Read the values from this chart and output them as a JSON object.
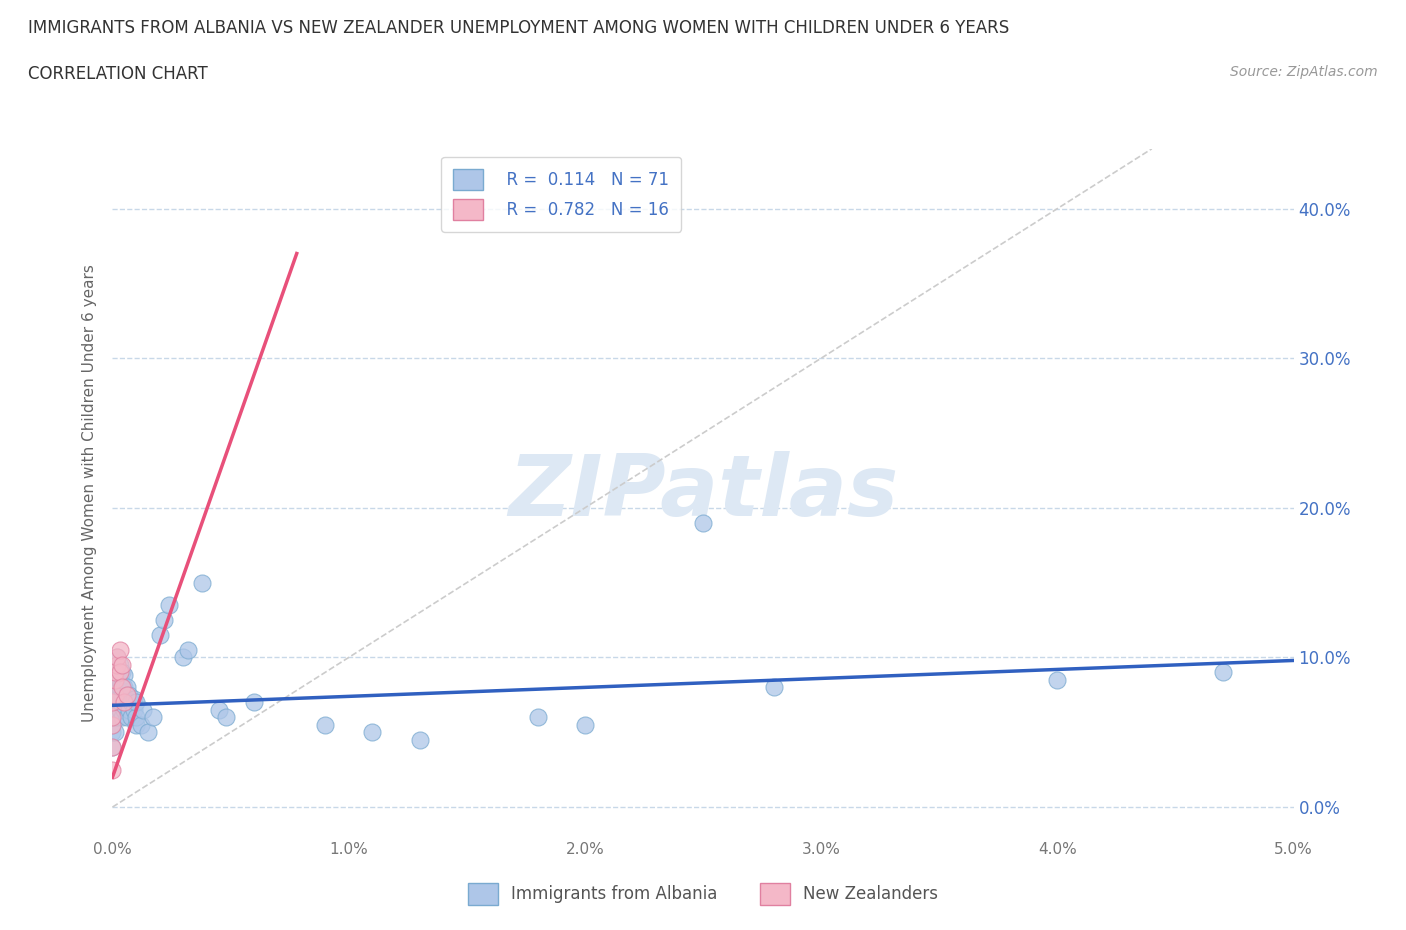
{
  "title_line1": "IMMIGRANTS FROM ALBANIA VS NEW ZEALANDER UNEMPLOYMENT AMONG WOMEN WITH CHILDREN UNDER 6 YEARS",
  "title_line2": "CORRELATION CHART",
  "source_text": "Source: ZipAtlas.com",
  "ylabel": "Unemployment Among Women with Children Under 6 years",
  "xlim": [
    0.0,
    0.05
  ],
  "ylim": [
    -0.02,
    0.44
  ],
  "yticks": [
    0.0,
    0.1,
    0.2,
    0.3,
    0.4
  ],
  "yticklabels": [
    "0.0%",
    "10.0%",
    "20.0%",
    "30.0%",
    "40.0%"
  ],
  "xticks": [
    0.0,
    0.01,
    0.02,
    0.03,
    0.04,
    0.05
  ],
  "xticklabels": [
    "0.0%",
    "1.0%",
    "2.0%",
    "3.0%",
    "4.0%",
    "5.0%"
  ],
  "albania_color": "#aec6e8",
  "albania_edge_color": "#7aaad0",
  "nz_color": "#f4b8c8",
  "nz_edge_color": "#e080a0",
  "albania_line_color": "#3060c0",
  "nz_line_color": "#e8507a",
  "diag_line_color": "#cccccc",
  "grid_color": "#c8d8e8",
  "background_color": "#ffffff",
  "watermark_color": "#dde8f4",
  "scatter_albania_x": [
    0.0,
    0.0,
    0.0,
    0.0,
    0.0,
    0.0,
    0.0,
    0.0001,
    0.0001,
    0.0001,
    0.0001,
    0.0001,
    0.0001,
    0.0002,
    0.0002,
    0.0002,
    0.0002,
    0.0002,
    0.0002,
    0.0002,
    0.0003,
    0.0003,
    0.0003,
    0.0003,
    0.0003,
    0.0003,
    0.0004,
    0.0004,
    0.0004,
    0.0004,
    0.0004,
    0.0005,
    0.0005,
    0.0005,
    0.0005,
    0.0006,
    0.0006,
    0.0006,
    0.0007,
    0.0007,
    0.0008,
    0.0008,
    0.0009,
    0.0009,
    0.001,
    0.001,
    0.001,
    0.0012,
    0.0013,
    0.0015,
    0.0017,
    0.002,
    0.0022,
    0.0024,
    0.003,
    0.0032,
    0.0038,
    0.0045,
    0.0048,
    0.006,
    0.009,
    0.011,
    0.013,
    0.018,
    0.02,
    0.025,
    0.028,
    0.04,
    0.047
  ],
  "scatter_albania_y": [
    0.04,
    0.05,
    0.055,
    0.065,
    0.07,
    0.075,
    0.08,
    0.05,
    0.06,
    0.065,
    0.07,
    0.075,
    0.085,
    0.06,
    0.065,
    0.07,
    0.075,
    0.08,
    0.09,
    0.1,
    0.065,
    0.07,
    0.075,
    0.08,
    0.085,
    0.095,
    0.06,
    0.068,
    0.075,
    0.082,
    0.09,
    0.065,
    0.072,
    0.08,
    0.088,
    0.06,
    0.07,
    0.08,
    0.065,
    0.075,
    0.06,
    0.07,
    0.065,
    0.072,
    0.055,
    0.06,
    0.07,
    0.055,
    0.065,
    0.05,
    0.06,
    0.115,
    0.125,
    0.135,
    0.1,
    0.105,
    0.15,
    0.065,
    0.06,
    0.07,
    0.055,
    0.05,
    0.045,
    0.06,
    0.055,
    0.19,
    0.08,
    0.085,
    0.09
  ],
  "scatter_nz_x": [
    0.0,
    0.0,
    0.0,
    0.0,
    0.0,
    0.0001,
    0.0001,
    0.0001,
    0.0002,
    0.0002,
    0.0003,
    0.0003,
    0.0004,
    0.0004,
    0.0005,
    0.0006
  ],
  "scatter_nz_y": [
    0.025,
    0.04,
    0.055,
    0.06,
    0.07,
    0.075,
    0.085,
    0.09,
    0.095,
    0.1,
    0.09,
    0.105,
    0.08,
    0.095,
    0.07,
    0.075
  ],
  "albania_trendline_x": [
    0.0,
    0.05
  ],
  "albania_trendline_y": [
    0.068,
    0.098
  ],
  "nz_trendline_x": [
    0.0,
    0.0078
  ],
  "nz_trendline_y": [
    0.02,
    0.37
  ],
  "diag_line_x": [
    0.0,
    0.044
  ],
  "diag_line_y": [
    0.0,
    0.44
  ]
}
